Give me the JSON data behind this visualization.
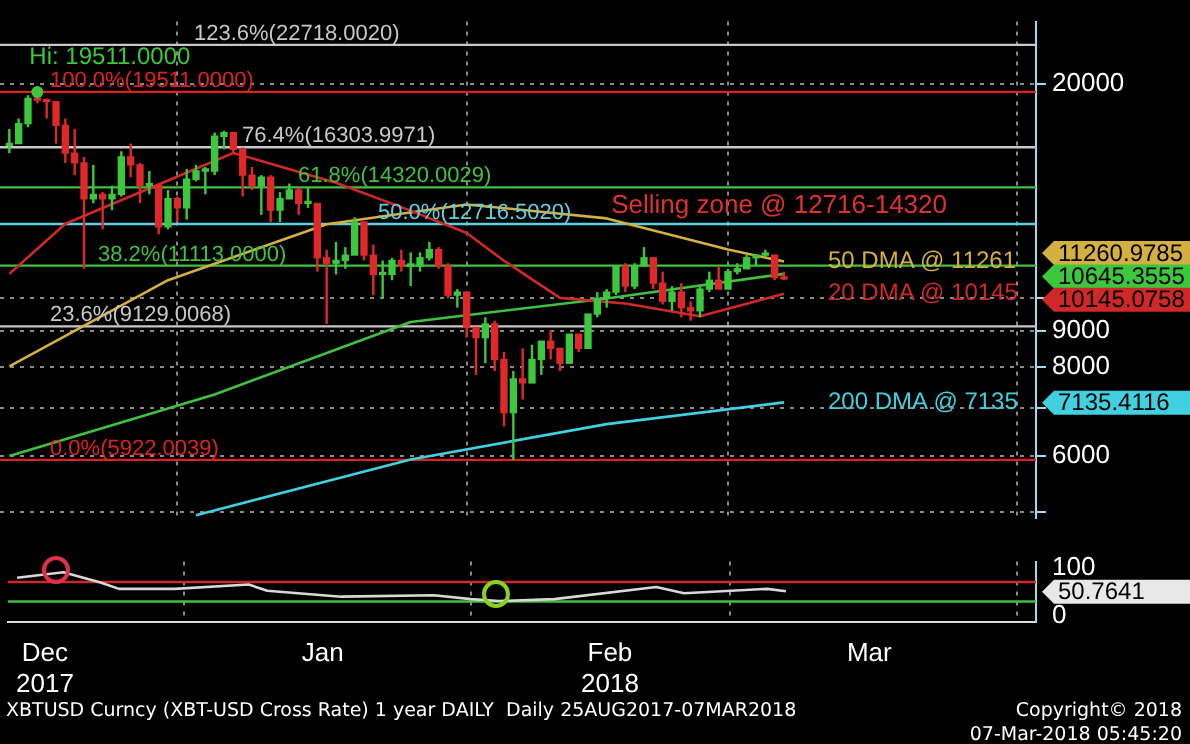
{
  "chart_data": [
    {
      "type": "candlestick",
      "x": [
        "2017-12-14",
        "2017-12-15",
        "2017-12-16",
        "2017-12-17",
        "2017-12-18",
        "2017-12-19",
        "2017-12-20",
        "2017-12-21",
        "2017-12-22",
        "2017-12-23",
        "2017-12-24",
        "2017-12-25",
        "2017-12-26",
        "2017-12-27",
        "2017-12-28",
        "2017-12-29",
        "2017-12-30",
        "2017-12-31",
        "2018-01-01",
        "2018-01-02",
        "2018-01-03",
        "2018-01-04",
        "2018-01-05",
        "2018-01-06",
        "2018-01-07",
        "2018-01-08",
        "2018-01-09",
        "2018-01-10",
        "2018-01-11",
        "2018-01-12",
        "2018-01-13",
        "2018-01-14",
        "2018-01-15",
        "2018-01-16",
        "2018-01-17",
        "2018-01-18",
        "2018-01-19",
        "2018-01-20",
        "2018-01-21",
        "2018-01-22",
        "2018-01-23",
        "2018-01-24",
        "2018-01-25",
        "2018-01-26",
        "2018-01-27",
        "2018-01-28",
        "2018-01-29",
        "2018-01-30",
        "2018-01-31",
        "2018-02-01",
        "2018-02-02",
        "2018-02-03",
        "2018-02-04",
        "2018-02-05",
        "2018-02-06",
        "2018-02-07",
        "2018-02-08",
        "2018-02-09",
        "2018-02-10",
        "2018-02-11",
        "2018-02-12",
        "2018-02-13",
        "2018-02-14",
        "2018-02-15",
        "2018-02-16",
        "2018-02-17",
        "2018-02-18",
        "2018-02-19",
        "2018-02-20",
        "2018-02-21",
        "2018-02-22",
        "2018-02-23",
        "2018-02-24",
        "2018-02-25",
        "2018-02-26",
        "2018-02-27",
        "2018-02-28",
        "2018-03-01",
        "2018-03-02",
        "2018-03-03",
        "2018-03-04",
        "2018-03-05",
        "2018-03-06",
        "2018-03-07"
      ],
      "ohlc": [
        [
          16400,
          17300,
          16000,
          16500
        ],
        [
          16500,
          17900,
          16500,
          17600
        ],
        [
          17600,
          19300,
          17400,
          19100
        ],
        [
          19100,
          19511,
          18800,
          19000
        ],
        [
          19000,
          19100,
          17900,
          18900
        ],
        [
          18900,
          18900,
          16500,
          17500
        ],
        [
          17500,
          17900,
          15500,
          16000
        ],
        [
          16000,
          17300,
          14900,
          15500
        ],
        [
          15500,
          15800,
          11000,
          13800
        ],
        [
          13800,
          15400,
          13600,
          14000
        ],
        [
          14000,
          14100,
          12500,
          13800
        ],
        [
          13800,
          14400,
          13300,
          14000
        ],
        [
          14000,
          16100,
          13900,
          15800
        ],
        [
          15800,
          16500,
          14800,
          15400
        ],
        [
          15400,
          15500,
          13600,
          14400
        ],
        [
          14400,
          15100,
          14000,
          14400
        ],
        [
          14400,
          14500,
          12300,
          12600
        ],
        [
          12600,
          14200,
          12500,
          13800
        ],
        [
          13800,
          13900,
          12800,
          13400
        ],
        [
          13400,
          15200,
          12900,
          14700
        ],
        [
          14700,
          15400,
          14600,
          15100
        ],
        [
          15100,
          15300,
          14000,
          15100
        ],
        [
          15100,
          17100,
          14900,
          16900
        ],
        [
          16900,
          17200,
          16200,
          17100
        ],
        [
          17100,
          17100,
          16000,
          16200
        ],
        [
          16200,
          16300,
          13900,
          14900
        ],
        [
          14900,
          15300,
          14200,
          14400
        ],
        [
          14400,
          14900,
          13100,
          14800
        ],
        [
          14800,
          14900,
          12800,
          13300
        ],
        [
          13300,
          14100,
          12800,
          13800
        ],
        [
          13800,
          14500,
          13800,
          14200
        ],
        [
          14200,
          14300,
          13100,
          13600
        ],
        [
          13600,
          14300,
          13400,
          13600
        ],
        [
          13600,
          13600,
          10900,
          11400
        ],
        [
          11400,
          11700,
          9200,
          11200
        ],
        [
          11200,
          12000,
          10800,
          11300
        ],
        [
          11300,
          11800,
          11000,
          11500
        ],
        [
          11500,
          13000,
          11500,
          12800
        ],
        [
          12800,
          12800,
          11300,
          11500
        ],
        [
          11500,
          11900,
          10100,
          10800
        ],
        [
          10800,
          11300,
          10000,
          10800
        ],
        [
          10800,
          11400,
          10600,
          11300
        ],
        [
          11300,
          11700,
          10900,
          11100
        ],
        [
          11100,
          11600,
          10400,
          11100
        ],
        [
          11100,
          11600,
          10900,
          11400
        ],
        [
          11400,
          12000,
          11300,
          11700
        ],
        [
          11700,
          11800,
          11000,
          11100
        ],
        [
          11100,
          11200,
          10000,
          10100
        ],
        [
          10100,
          10300,
          9700,
          10200
        ],
        [
          10200,
          10200,
          8800,
          9100
        ],
        [
          9100,
          9100,
          7800,
          8800
        ],
        [
          8800,
          9400,
          8100,
          9200
        ],
        [
          9200,
          9300,
          7900,
          8200
        ],
        [
          8200,
          8400,
          6600,
          6900
        ],
        [
          6900,
          7900,
          5922,
          7700
        ],
        [
          7700,
          8500,
          7200,
          7600
        ],
        [
          7600,
          8600,
          7600,
          8200
        ],
        [
          8200,
          8700,
          7800,
          8700
        ],
        [
          8700,
          9000,
          8200,
          8500
        ],
        [
          8500,
          8500,
          7900,
          8100
        ],
        [
          8100,
          8900,
          8100,
          8900
        ],
        [
          8900,
          8900,
          8400,
          8500
        ],
        [
          8500,
          9500,
          8500,
          9500
        ],
        [
          9500,
          10200,
          9400,
          10000
        ],
        [
          10000,
          10300,
          9700,
          10200
        ],
        [
          10200,
          11100,
          10100,
          11100
        ],
        [
          11100,
          11200,
          10200,
          10400
        ],
        [
          10400,
          11200,
          10300,
          11100
        ],
        [
          11100,
          11800,
          11100,
          11400
        ],
        [
          11400,
          11400,
          10300,
          10500
        ],
        [
          10500,
          10900,
          9800,
          9900
        ],
        [
          9900,
          10400,
          9600,
          10200
        ],
        [
          10200,
          10500,
          9400,
          9700
        ],
        [
          9700,
          9900,
          9300,
          9600
        ],
        [
          9600,
          10400,
          9400,
          10300
        ],
        [
          10300,
          10900,
          10200,
          10600
        ],
        [
          10600,
          11100,
          10300,
          10300
        ],
        [
          10300,
          11000,
          10300,
          10900
        ],
        [
          10900,
          11200,
          10800,
          11000
        ],
        [
          11000,
          11500,
          11000,
          11400
        ],
        [
          11400,
          11500,
          11100,
          11500
        ],
        [
          11500,
          11700,
          11400,
          11500
        ],
        [
          11500,
          11500,
          10600,
          10700
        ],
        [
          10700,
          10900,
          10600,
          10645.3555
        ]
      ],
      "series": [
        {
          "type": "line",
          "name": "20 DMA @ 10145",
          "color": "#d02828",
          "x": [
            "2017-12-14",
            "2017-12-20",
            "2018-01-07",
            "2018-01-18",
            "2018-01-26",
            "2018-02-01",
            "2018-02-05",
            "2018-02-08",
            "2018-02-11",
            "2018-02-18",
            "2018-02-26",
            "2018-03-07"
          ],
          "values": [
            10820,
            12730,
            16010,
            14540,
            13280,
            12350,
            11290,
            10630,
            10010,
            9830,
            9430,
            10145
          ]
        },
        {
          "type": "line",
          "name": "50 DMA @ 11261",
          "color": "#d4b040",
          "x": [
            "2017-12-14",
            "2017-12-31",
            "2018-01-17",
            "2018-02-01",
            "2018-02-16",
            "2018-03-01",
            "2018-03-07"
          ],
          "values": [
            8020,
            10600,
            12710,
            13550,
            12950,
            11710,
            11261
          ]
        },
        {
          "type": "line",
          "color": "#40c040",
          "x": [
            "2017-12-14",
            "2018-01-05",
            "2018-01-26",
            "2018-02-16",
            "2018-03-07"
          ],
          "values": [
            6000,
            7320,
            9260,
            9990,
            10820
          ]
        },
        {
          "type": "line",
          "name": "200 DMA @ 7135",
          "color": "#40d0e0",
          "x": [
            "2018-01-03",
            "2018-01-26",
            "2018-02-16",
            "2018-03-07"
          ],
          "values": [
            4950,
            5930,
            6650,
            7135
          ]
        }
      ],
      "ref_lines": [
        {
          "axis": "y",
          "value": 22718.002,
          "label": "123.6%(22718.0020)",
          "color": "#c8c8c8"
        },
        {
          "axis": "y",
          "value": 19511,
          "label": "100.0%(19511.0000)",
          "color": "#e02020"
        },
        {
          "axis": "y",
          "value": 16303.9971,
          "label": "76.4%(16303.9971)",
          "color": "#c8c8c8"
        },
        {
          "axis": "y",
          "value": 14320.0029,
          "label": "61.8%(14320.0029)",
          "color": "#40c040"
        },
        {
          "axis": "y",
          "value": 12716.502,
          "label": "50.0%(12716.5020)",
          "color": "#60d0e0"
        },
        {
          "axis": "y",
          "value": 11113,
          "label": "38.2%(11113.0000)",
          "color": "#40c040"
        },
        {
          "axis": "y",
          "value": 9129.0068,
          "label": "23.6%(9129.0068)",
          "color": "#c8c8c8"
        },
        {
          "axis": "y",
          "value": 5922.0039,
          "label": "0.0%(5922.0039)",
          "color": "#e02020"
        }
      ],
      "annotations": [
        "Selling zone @ 12716-14320",
        "11260.9785",
        "10645.3555",
        "10145.0758",
        "7135.4116",
        {
          "text": "Hi: 19511.0000",
          "x": "2017-12-17",
          "y": 19511
        }
      ],
      "xlim": [
        "2017-12-13",
        "2018-04-03"
      ],
      "xticks": [
        {
          "value": "2018-01-01",
          "label": null
        },
        {
          "value": "2018-02-01",
          "label": null
        },
        {
          "value": "2018-03-01",
          "label": null
        },
        {
          "value": "2018-04-01",
          "label": null
        }
      ],
      "ylim": [
        4900,
        24500
      ],
      "yticks": [
        {
          "value": 5000,
          "label": null
        },
        6000,
        {
          "value": 7000,
          "label": null
        },
        8000,
        9000,
        {
          "value": 10000,
          "label": null
        },
        20000
      ],
      "log": true,
      "grid": true,
      "tick_labels": "y",
      "marker": "none",
      "line_style": "solid"
    },
    {
      "type": "line",
      "series": [
        {
          "color": "#d8d8d8",
          "x": [
            "2017-12-14",
            "2017-12-19",
            "2017-12-23",
            "2017-12-25",
            "2017-12-31",
            "2018-01-08",
            "2018-01-10",
            "2018-01-18",
            "2018-01-28",
            "2018-02-01",
            "2018-02-04",
            "2018-02-10",
            "2018-02-21",
            "2018-02-24",
            "2018-03-05",
            "2018-03-07"
          ],
          "values": [
            79,
            90,
            69,
            56,
            56,
            65,
            52,
            40,
            43,
            35,
            31,
            35,
            60,
            47,
            56,
            51
          ]
        }
      ],
      "ref_lines": [
        {
          "axis": "y",
          "value": 70,
          "color": "#d02828"
        },
        {
          "axis": "y",
          "value": 30,
          "color": "#40c040"
        }
      ],
      "annotations": [
        "50.7641",
        "XBTUSD Curncy (XBT-USD Cross Rate) 1 year DAILY  Daily 25AUG2017-07MAR2018",
        "Copyright© 2018",
        "07-Mar-2018 05:45:20"
      ],
      "xlim": [
        "2017-12-13",
        "2018-04-03"
      ],
      "xticks": [
        {
          "value": "2017-12-17",
          "label": "Dec\n2017"
        },
        {
          "value": "2018-01-01",
          "label": null
        },
        {
          "value": "2018-01-16",
          "label": "Jan"
        },
        {
          "value": "2018-02-01",
          "label": null
        },
        {
          "value": "2018-02-16",
          "label": "Feb\n2018"
        },
        {
          "value": "2018-03-01",
          "label": null
        },
        {
          "value": "2018-03-16",
          "label": "Mar"
        },
        {
          "value": "2018-04-01",
          "label": null
        }
      ],
      "ylim": [
        -12,
        112
      ],
      "yticks": [
        0,
        100
      ],
      "grid": "x",
      "marker": "none",
      "line_style": "solid"
    }
  ]
}
